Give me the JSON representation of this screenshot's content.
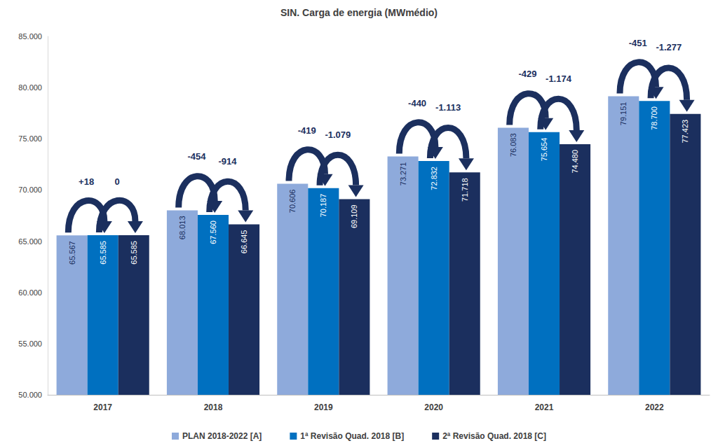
{
  "chart_data": {
    "type": "bar",
    "title": "SIN. Carga de energia (MWmédio)",
    "categories": [
      "2017",
      "2018",
      "2019",
      "2020",
      "2021",
      "2022"
    ],
    "series": [
      {
        "name": "PLAN 2018-2022 [A]",
        "color": "#8eaadb",
        "values": [
          65567,
          68013,
          70606,
          73271,
          76083,
          79151
        ],
        "value_labels": [
          "65.567",
          "68.013",
          "70.606",
          "73.271",
          "76.083",
          "79.151"
        ]
      },
      {
        "name": "1ª Revisão Quad. 2018 [B]",
        "color": "#0070c0",
        "values": [
          65585,
          67560,
          70187,
          72832,
          75654,
          78700
        ],
        "value_labels": [
          "65.585",
          "67.560",
          "70.187",
          "72.832",
          "75.654",
          "78.700"
        ]
      },
      {
        "name": "2ª Revisão Quad. 2018 [C]",
        "color": "#1b2f5e",
        "values": [
          65585,
          66645,
          69109,
          71718,
          74480,
          77423
        ],
        "value_labels": [
          "65.585",
          "66.645",
          "69.109",
          "71.718",
          "74.480",
          "77.423"
        ]
      }
    ],
    "ylim": [
      50000,
      85000
    ],
    "yticks": [
      {
        "value": 50000,
        "label": "50.000"
      },
      {
        "value": 55000,
        "label": "55.000"
      },
      {
        "value": 60000,
        "label": "60.000"
      },
      {
        "value": 65000,
        "label": "65.000"
      },
      {
        "value": 70000,
        "label": "70.000"
      },
      {
        "value": 75000,
        "label": "75.000"
      },
      {
        "value": 80000,
        "label": "80.000"
      },
      {
        "value": 85000,
        "label": "85.000"
      }
    ],
    "grid": false,
    "legend": "bottom",
    "data_labels": true,
    "annotations": [
      {
        "category": "2017",
        "from": "PLAN 2018-2022 [A]",
        "to": "1ª Revisão Quad. 2018 [B]",
        "value": 18,
        "label": "+18"
      },
      {
        "category": "2017",
        "from": "1ª Revisão Quad. 2018 [B]",
        "to": "2ª Revisão Quad. 2018 [C]",
        "value": 0,
        "label": "0"
      },
      {
        "category": "2018",
        "from": "PLAN 2018-2022 [A]",
        "to": "1ª Revisão Quad. 2018 [B]",
        "value": -454,
        "label": "-454"
      },
      {
        "category": "2018",
        "from": "1ª Revisão Quad. 2018 [B]",
        "to": "2ª Revisão Quad. 2018 [C]",
        "value": -914,
        "label": "-914"
      },
      {
        "category": "2019",
        "from": "PLAN 2018-2022 [A]",
        "to": "1ª Revisão Quad. 2018 [B]",
        "value": -419,
        "label": "-419"
      },
      {
        "category": "2019",
        "from": "1ª Revisão Quad. 2018 [B]",
        "to": "2ª Revisão Quad. 2018 [C]",
        "value": -1079,
        "label": "-1.079"
      },
      {
        "category": "2020",
        "from": "PLAN 2018-2022 [A]",
        "to": "1ª Revisão Quad. 2018 [B]",
        "value": -440,
        "label": "-440"
      },
      {
        "category": "2020",
        "from": "1ª Revisão Quad. 2018 [B]",
        "to": "2ª Revisão Quad. 2018 [C]",
        "value": -1113,
        "label": "-1.113"
      },
      {
        "category": "2021",
        "from": "PLAN 2018-2022 [A]",
        "to": "1ª Revisão Quad. 2018 [B]",
        "value": -429,
        "label": "-429"
      },
      {
        "category": "2021",
        "from": "1ª Revisão Quad. 2018 [B]",
        "to": "2ª Revisão Quad. 2018 [C]",
        "value": -1174,
        "label": "-1.174"
      },
      {
        "category": "2022",
        "from": "PLAN 2018-2022 [A]",
        "to": "1ª Revisão Quad. 2018 [B]",
        "value": -451,
        "label": "-451"
      },
      {
        "category": "2022",
        "from": "1ª Revisão Quad. 2018 [B]",
        "to": "2ª Revisão Quad. 2018 [C]",
        "value": -1277,
        "label": "-1.277"
      }
    ]
  }
}
